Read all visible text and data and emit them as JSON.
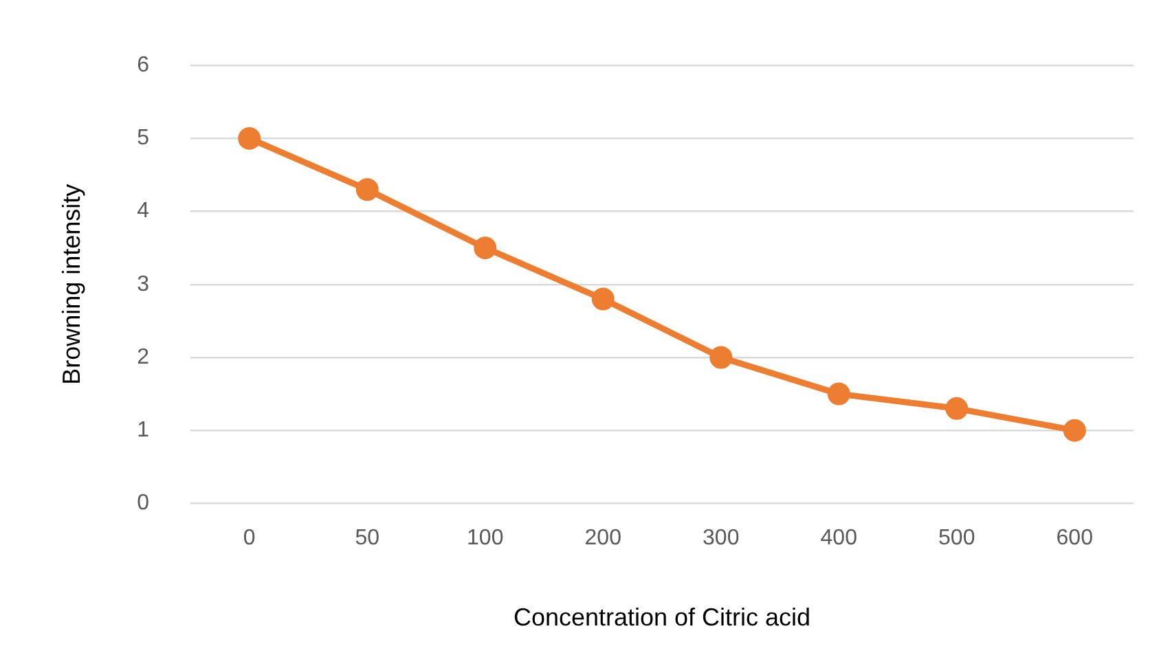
{
  "chart_data": {
    "type": "line",
    "xlabel": "Concentration of Citric acid",
    "ylabel": "Browning intensity",
    "categories": [
      "0",
      "50",
      "100",
      "200",
      "300",
      "400",
      "500",
      "600"
    ],
    "series": [
      {
        "color": "#ed7d31",
        "values": [
          5,
          4.3,
          3.5,
          2.8,
          2,
          1.5,
          1.3,
          1
        ]
      }
    ],
    "ylim": [
      0,
      6
    ],
    "yticks": [
      0,
      1,
      2,
      3,
      4,
      5,
      6
    ],
    "grid": "y",
    "legend": false,
    "marker": "circle",
    "line_style": "solid"
  }
}
